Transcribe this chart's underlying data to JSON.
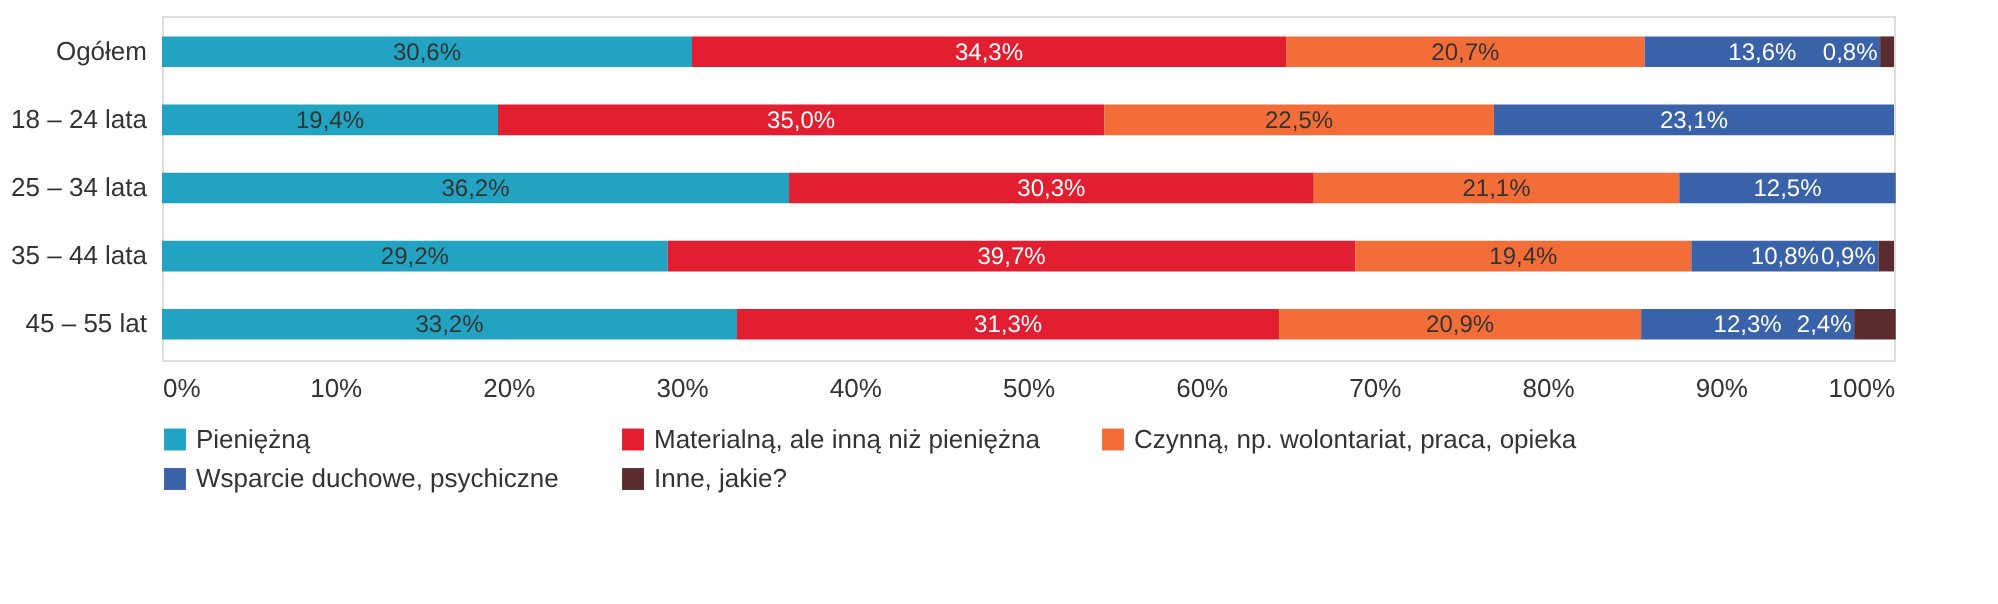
{
  "chart_data": {
    "type": "bar",
    "orientation": "horizontal",
    "stacked": true,
    "data_labels": true,
    "grid": false,
    "legend": "bottom",
    "categories": [
      "Ogółem",
      "18 – 24 lata",
      "25 – 34 lata",
      "35 – 44 lata",
      "45 – 55 lat"
    ],
    "xlim": [
      0,
      100
    ],
    "xticks": [
      {
        "value": 0,
        "label": "0%"
      },
      {
        "value": 10,
        "label": "10%"
      },
      {
        "value": 20,
        "label": "20%"
      },
      {
        "value": 30,
        "label": "30%"
      },
      {
        "value": 40,
        "label": "40%"
      },
      {
        "value": 50,
        "label": "50%"
      },
      {
        "value": 60,
        "label": "60%"
      },
      {
        "value": 70,
        "label": "70%"
      },
      {
        "value": 80,
        "label": "80%"
      },
      {
        "value": 90,
        "label": "90%"
      },
      {
        "value": 100,
        "label": "100%"
      }
    ],
    "series": [
      {
        "name": "Pieniężną",
        "color": "#22a3c1",
        "values": [
          30.6,
          19.4,
          36.2,
          29.2,
          33.2
        ],
        "value_labels": [
          "30,6%",
          "19,4%",
          "36,2%",
          "29,2%",
          "33,2%"
        ]
      },
      {
        "name": "Materialną, ale inną niż pieniężna",
        "color": "#e21f30",
        "values": [
          34.3,
          35.0,
          30.3,
          39.7,
          31.3
        ],
        "value_labels": [
          "34,3%",
          "35,0%",
          "30,3%",
          "39,7%",
          "31,3%"
        ]
      },
      {
        "name": "Czynną, np. wolontariat, praca, opieka",
        "color": "#f26d37",
        "values": [
          20.7,
          22.5,
          21.1,
          19.4,
          20.9
        ],
        "value_labels": [
          "20,7%",
          "22,5%",
          "21,1%",
          "19,4%",
          "20,9%"
        ]
      },
      {
        "name": "Wsparcie duchowe, psychiczne",
        "color": "#3a62a8",
        "values": [
          13.6,
          23.1,
          12.5,
          10.8,
          12.3
        ],
        "value_labels": [
          "13,6%",
          "23,1%",
          "12,5%",
          "10,8%",
          "12,3%"
        ]
      },
      {
        "name": "Inne, jakie?",
        "color": "#5b2c2e",
        "values": [
          0.8,
          null,
          null,
          0.9,
          2.4
        ],
        "value_labels": [
          "0,8%",
          null,
          null,
          "0,9%",
          "2,4%"
        ]
      }
    ]
  }
}
